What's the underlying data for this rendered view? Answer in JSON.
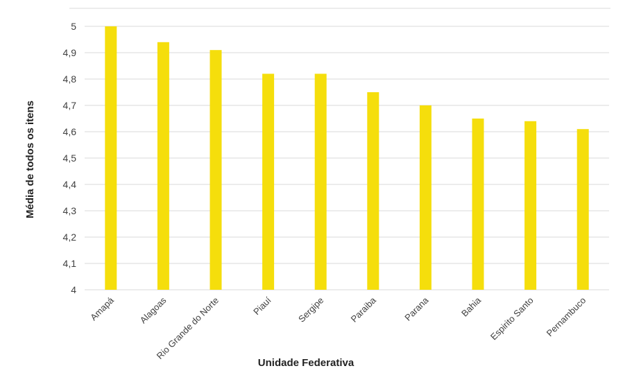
{
  "chart_data": {
    "type": "bar",
    "title": "",
    "xlabel": "Unidade Federativa",
    "ylabel": "Média de todos os itens",
    "categories": [
      "Amapá",
      "Alagoas",
      "Rio Grande do Norte",
      "Piauí",
      "Sergipe",
      "Paraiba",
      "Parana",
      "Bahia",
      "Espirito Santo",
      "Pernambuco"
    ],
    "values": [
      5.0,
      4.94,
      4.91,
      4.82,
      4.82,
      4.75,
      4.7,
      4.65,
      4.64,
      4.61
    ],
    "ylim": [
      4,
      5
    ],
    "yticks": [
      "4",
      "4,1",
      "4,2",
      "4,3",
      "4,4",
      "4,5",
      "4,6",
      "4,7",
      "4,8",
      "4,9",
      "5"
    ],
    "grid": true,
    "legend": "none",
    "bar_color": "#F5DE0C",
    "grid_color": "#D9D9D9"
  }
}
